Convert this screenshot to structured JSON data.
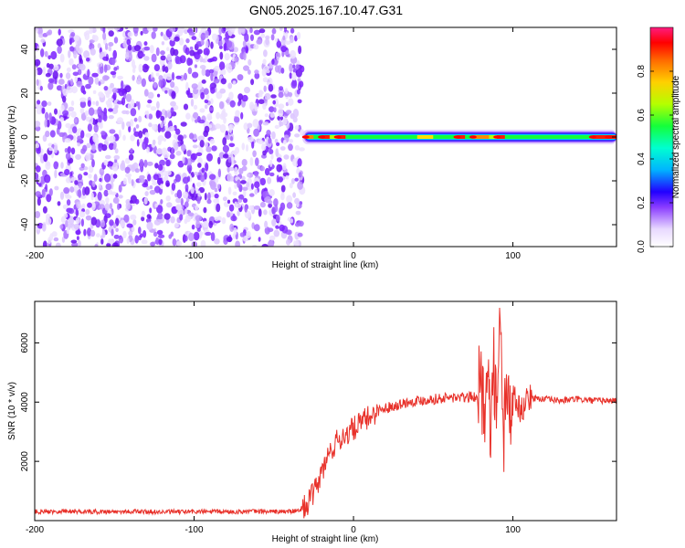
{
  "title": "GN05.2025.167.10.47.G31",
  "chart_data": [
    {
      "type": "heatmap",
      "xlabel": "Height of straight line (km)",
      "ylabel": "Frequency (Hz)",
      "xlim": [
        -200,
        165
      ],
      "ylim": [
        -50,
        50
      ],
      "x_ticks": [
        -200,
        -100,
        0,
        100
      ],
      "y_ticks": [
        -40,
        -20,
        0,
        20,
        40
      ],
      "colorbar": {
        "label": "Normalized spectral amplitude",
        "range": [
          0.0,
          1.0
        ],
        "ticks": [
          0.0,
          0.2,
          0.4,
          0.6,
          0.8
        ],
        "tick_labels": [
          "0.0",
          "0.2",
          "0.4",
          "0.6",
          "0.8"
        ]
      },
      "noise_region": {
        "x_range": [
          -200,
          -32
        ],
        "freq_range": [
          -50,
          50
        ]
      },
      "signal_band": {
        "center_freq": 0,
        "x_range": [
          -32,
          165
        ],
        "amplitude_profile": [
          {
            "x": -30,
            "amp": 0.85
          },
          {
            "x": -25,
            "amp": 0.55
          },
          {
            "x": -20,
            "amp": 0.95
          },
          {
            "x": -15,
            "amp": 0.6
          },
          {
            "x": -10,
            "amp": 0.9
          },
          {
            "x": -5,
            "amp": 0.55
          },
          {
            "x": 0,
            "amp": 0.5
          },
          {
            "x": 5,
            "amp": 0.45
          },
          {
            "x": 10,
            "amp": 0.5
          },
          {
            "x": 20,
            "amp": 0.45
          },
          {
            "x": 30,
            "amp": 0.5
          },
          {
            "x": 40,
            "amp": 0.75
          },
          {
            "x": 50,
            "amp": 0.45
          },
          {
            "x": 60,
            "amp": 0.5
          },
          {
            "x": 65,
            "amp": 0.9
          },
          {
            "x": 70,
            "amp": 0.55
          },
          {
            "x": 75,
            "amp": 0.85
          },
          {
            "x": 80,
            "amp": 0.8
          },
          {
            "x": 85,
            "amp": 0.6
          },
          {
            "x": 90,
            "amp": 0.9
          },
          {
            "x": 95,
            "amp": 0.55
          },
          {
            "x": 100,
            "amp": 0.5
          },
          {
            "x": 110,
            "amp": 0.45
          },
          {
            "x": 120,
            "amp": 0.4
          },
          {
            "x": 130,
            "amp": 0.45
          },
          {
            "x": 140,
            "amp": 0.55
          },
          {
            "x": 150,
            "amp": 0.9
          },
          {
            "x": 160,
            "amp": 0.95
          },
          {
            "x": 165,
            "amp": 0.95
          }
        ]
      }
    },
    {
      "type": "line",
      "xlabel": "Height of straight line (km)",
      "ylabel": "SNR (10 * v/v)",
      "xlim": [
        -200,
        165
      ],
      "ylim": [
        0,
        7400
      ],
      "x_ticks": [
        -200,
        -100,
        0,
        100
      ],
      "y_ticks": [
        2000,
        4000,
        6000
      ],
      "color": "#e8312a",
      "series": [
        {
          "x": [
            -200,
            -180,
            -160,
            -140,
            -120,
            -100,
            -80,
            -60,
            -45,
            -35,
            -30,
            -25,
            -20,
            -15,
            -10,
            -5,
            0,
            5,
            10,
            15,
            20,
            30,
            40,
            50,
            60,
            70,
            78,
            80,
            82,
            84,
            86,
            88,
            90,
            92,
            94,
            96,
            98,
            100,
            105,
            110,
            120,
            130,
            140,
            150,
            160,
            165
          ],
          "y": [
            300,
            320,
            300,
            310,
            290,
            300,
            300,
            310,
            300,
            320,
            500,
            900,
            1600,
            2300,
            2700,
            2900,
            3100,
            3300,
            3500,
            3700,
            3800,
            3950,
            4050,
            4100,
            4150,
            4150,
            4200,
            4800,
            3400,
            6200,
            2600,
            5500,
            3000,
            7000,
            2400,
            5200,
            3400,
            4300,
            3700,
            4150,
            4100,
            4050,
            4100,
            4050,
            4050,
            4050
          ]
        }
      ]
    }
  ]
}
